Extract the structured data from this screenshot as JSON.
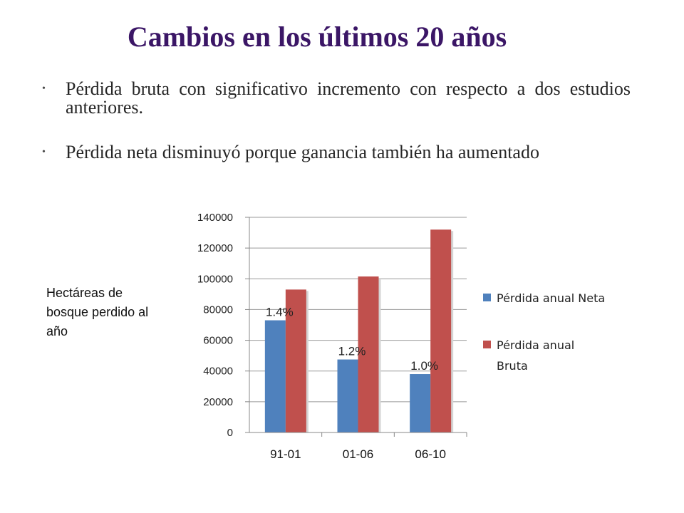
{
  "slide": {
    "title": "Cambios en los últimos 20 años",
    "bullets": [
      "Pérdida bruta con significativo incremento con respecto a dos estudios anteriores.",
      "Pérdida neta disminuyó porque ganancia también ha aumentado"
    ],
    "side_label": "Hectáreas de bosque perdido al año"
  },
  "chart_data": {
    "type": "bar",
    "categories": [
      "91-01",
      "01-06",
      "06-10"
    ],
    "series": [
      {
        "name": "Pérdida anual Neta",
        "values": [
          73000,
          47500,
          38000
        ],
        "color": "#4f81bd"
      },
      {
        "name": "Pérdida anual Bruta",
        "values": [
          93000,
          101500,
          132000
        ],
        "color": "#c0504d"
      }
    ],
    "data_labels": [
      "1.4%",
      "1.2%",
      "1.0%"
    ],
    "ylim": [
      0,
      140000
    ],
    "yticks": [
      "0",
      "20000",
      "40000",
      "60000",
      "80000",
      "100000",
      "120000",
      "140000"
    ],
    "grid": true,
    "legend_position": "right"
  }
}
